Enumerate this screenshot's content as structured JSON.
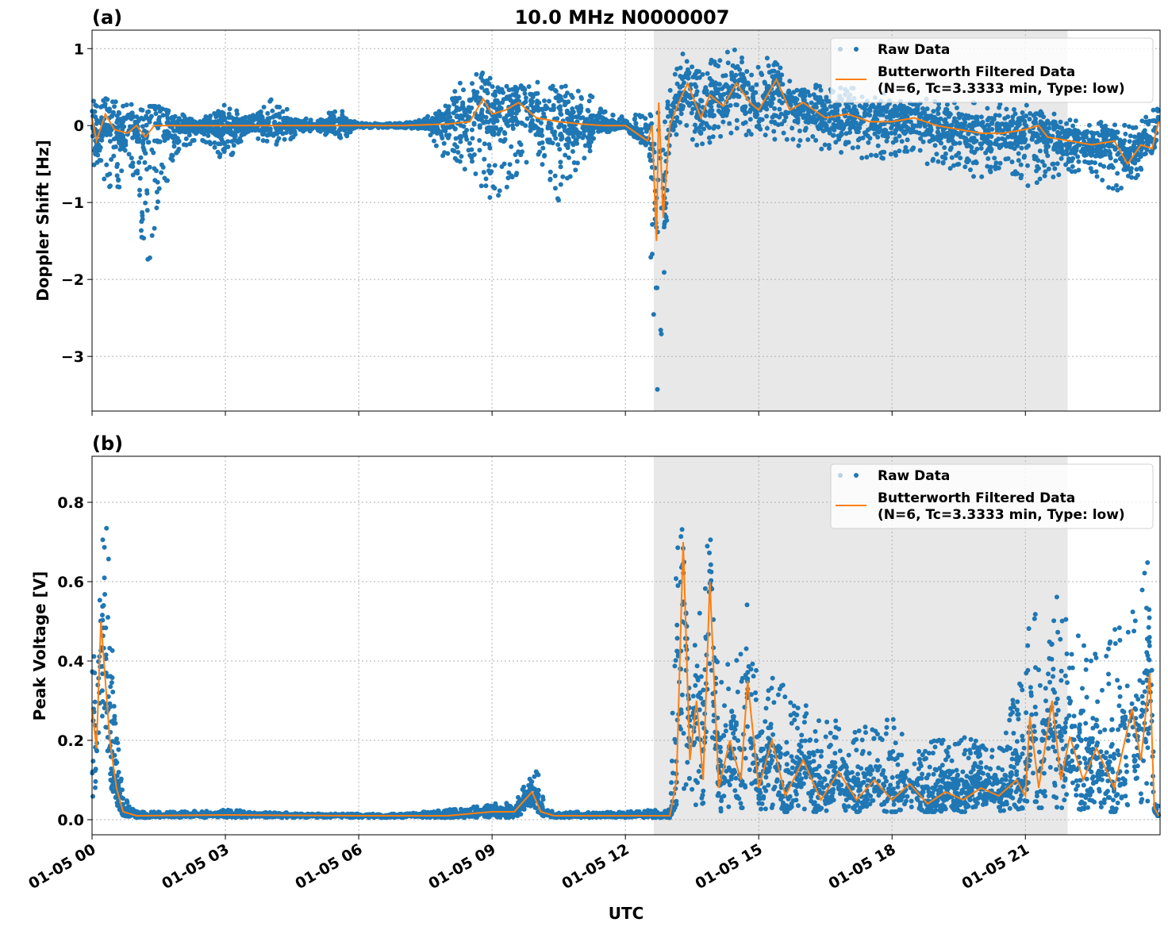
{
  "chart_data": [
    {
      "type": "scatter",
      "panel_label": "(a)",
      "title": "10.0 MHz N0000007",
      "xlabel": "",
      "ylabel": "Doppler Shift [Hz]",
      "xlim_hours": [
        0,
        24.03
      ],
      "ylim": [
        -3.71,
        1.24
      ],
      "yticks": [
        1,
        0,
        -1,
        -2,
        -3
      ],
      "ytick_labels": [
        "1",
        "0",
        "−1",
        "−2",
        "−3"
      ],
      "grid": true,
      "legend_placement": "top-right",
      "shaded_region_hours": [
        12.64,
        21.95
      ],
      "series": [
        {
          "name": "Raw Data",
          "kind": "points",
          "color": "#1f77b4",
          "envelope_hours_min_max": [
            [
              0,
              -0.5,
              0.45
            ],
            [
              0.5,
              -0.9,
              0.35
            ],
            [
              1,
              -0.6,
              0.3
            ],
            [
              1.2,
              -2.1,
              0.25
            ],
            [
              1.5,
              -1.0,
              0.25
            ],
            [
              2,
              -0.3,
              0.15
            ],
            [
              2.5,
              -0.2,
              0.1
            ],
            [
              3,
              -0.5,
              0.3
            ],
            [
              3.5,
              -0.1,
              0.1
            ],
            [
              4,
              -0.3,
              0.35
            ],
            [
              4.5,
              -0.2,
              0.2
            ],
            [
              5,
              -0.05,
              0.05
            ],
            [
              5.5,
              -0.25,
              0.25
            ],
            [
              6,
              -0.03,
              0.03
            ],
            [
              7,
              -0.03,
              0.03
            ],
            [
              7.5,
              -0.05,
              0.1
            ],
            [
              8,
              -0.5,
              0.35
            ],
            [
              8.5,
              -0.6,
              0.8
            ],
            [
              9,
              -1.0,
              0.6
            ],
            [
              9.5,
              -0.7,
              0.55
            ],
            [
              10,
              -0.4,
              0.6
            ],
            [
              10.5,
              -1.0,
              0.55
            ],
            [
              11,
              -0.5,
              0.6
            ],
            [
              11.5,
              -0.1,
              0.2
            ],
            [
              12,
              -0.05,
              0.1
            ],
            [
              12.5,
              -0.3,
              0.2
            ],
            [
              12.6,
              -2.3,
              0.1
            ],
            [
              12.7,
              -3.5,
              0.2
            ],
            [
              12.8,
              -3.3,
              0.1
            ],
            [
              13,
              -0.3,
              0.5
            ],
            [
              13.3,
              0.0,
              0.95
            ],
            [
              13.6,
              -0.3,
              0.8
            ],
            [
              14,
              -0.2,
              0.9
            ],
            [
              14.5,
              -0.1,
              1.0
            ],
            [
              15,
              -0.2,
              0.85
            ],
            [
              15.3,
              -0.2,
              0.95
            ],
            [
              15.5,
              -0.3,
              0.75
            ],
            [
              16,
              -0.3,
              0.6
            ],
            [
              16.5,
              -0.4,
              0.55
            ],
            [
              17,
              -0.4,
              0.5
            ],
            [
              17.5,
              -0.5,
              0.45
            ],
            [
              18,
              -0.4,
              0.4
            ],
            [
              18.5,
              -0.5,
              0.35
            ],
            [
              19,
              -0.5,
              0.35
            ],
            [
              19.5,
              -0.6,
              0.3
            ],
            [
              20,
              -0.7,
              0.3
            ],
            [
              20.5,
              -0.6,
              0.3
            ],
            [
              21,
              -0.8,
              0.3
            ],
            [
              21.5,
              -0.7,
              0.2
            ],
            [
              22,
              -0.6,
              0.1
            ],
            [
              22.5,
              -0.6,
              0.05
            ],
            [
              23,
              -0.9,
              0.05
            ],
            [
              23.5,
              -0.7,
              0.0
            ],
            [
              24,
              -0.2,
              0.3
            ]
          ]
        },
        {
          "name": "Butterworth Filtered Data\n(N=6, Tc=3.3333 min, Type: low)",
          "kind": "line",
          "color": "#ff7f0e",
          "points_hours_value": [
            [
              0,
              0.1
            ],
            [
              0.1,
              -0.2
            ],
            [
              0.3,
              0.15
            ],
            [
              0.5,
              -0.05
            ],
            [
              0.8,
              -0.1
            ],
            [
              1,
              0
            ],
            [
              1.2,
              -0.15
            ],
            [
              1.4,
              0
            ],
            [
              2,
              0
            ],
            [
              3,
              0
            ],
            [
              4,
              0
            ],
            [
              5,
              0
            ],
            [
              6,
              0
            ],
            [
              7,
              0
            ],
            [
              8,
              0.02
            ],
            [
              8.5,
              0.05
            ],
            [
              8.8,
              0.35
            ],
            [
              9,
              0.15
            ],
            [
              9.3,
              0.2
            ],
            [
              9.6,
              0.3
            ],
            [
              10,
              0.1
            ],
            [
              10.5,
              0.05
            ],
            [
              11,
              0.02
            ],
            [
              11.5,
              0
            ],
            [
              12,
              0
            ],
            [
              12.5,
              -0.2
            ],
            [
              12.6,
              0
            ],
            [
              12.7,
              -1.5
            ],
            [
              12.75,
              0.3
            ],
            [
              12.85,
              -1.2
            ],
            [
              13,
              0
            ],
            [
              13.2,
              0.3
            ],
            [
              13.4,
              0.55
            ],
            [
              13.7,
              0.1
            ],
            [
              13.9,
              0.4
            ],
            [
              14.2,
              0.25
            ],
            [
              14.5,
              0.55
            ],
            [
              14.8,
              0.3
            ],
            [
              15,
              0.2
            ],
            [
              15.4,
              0.6
            ],
            [
              15.7,
              0.2
            ],
            [
              16,
              0.3
            ],
            [
              16.5,
              0.1
            ],
            [
              17,
              0.15
            ],
            [
              17.5,
              0.05
            ],
            [
              18,
              0.05
            ],
            [
              18.5,
              0.1
            ],
            [
              19,
              0
            ],
            [
              19.5,
              -0.05
            ],
            [
              20,
              -0.1
            ],
            [
              20.5,
              -0.1
            ],
            [
              21,
              -0.05
            ],
            [
              21.3,
              0
            ],
            [
              21.5,
              -0.15
            ],
            [
              22,
              -0.2
            ],
            [
              22.5,
              -0.25
            ],
            [
              23,
              -0.2
            ],
            [
              23.3,
              -0.5
            ],
            [
              23.6,
              -0.25
            ],
            [
              23.85,
              -0.3
            ],
            [
              24,
              0.05
            ]
          ]
        }
      ]
    },
    {
      "type": "scatter",
      "panel_label": "(b)",
      "title": "",
      "xlabel": "UTC",
      "ylabel": "Peak Voltage [V]",
      "xlim_hours": [
        0,
        24.03
      ],
      "ylim": [
        -0.038,
        0.916
      ],
      "yticks": [
        0.0,
        0.2,
        0.4,
        0.6,
        0.8
      ],
      "ytick_labels": [
        "0.0",
        "0.2",
        "0.4",
        "0.6",
        "0.8"
      ],
      "xticks_hours": [
        0,
        3,
        6,
        9,
        12,
        15,
        18,
        21
      ],
      "xtick_labels": [
        "01-05 00",
        "01-05 03",
        "01-05 06",
        "01-05 09",
        "01-05 12",
        "01-05 15",
        "01-05 18",
        "01-05 21"
      ],
      "grid": true,
      "legend_placement": "top-right",
      "shaded_region_hours": [
        12.64,
        21.95
      ],
      "series": [
        {
          "name": "Raw Data",
          "kind": "points",
          "color": "#1f77b4",
          "envelope_hours_min_max": [
            [
              0,
              0.05,
              0.6
            ],
            [
              0.15,
              0.1,
              0.5
            ],
            [
              0.25,
              0.15,
              0.82
            ],
            [
              0.35,
              0.1,
              0.75
            ],
            [
              0.5,
              0.05,
              0.3
            ],
            [
              0.7,
              0.01,
              0.06
            ],
            [
              1,
              0.005,
              0.02
            ],
            [
              2,
              0.005,
              0.02
            ],
            [
              3,
              0.005,
              0.025
            ],
            [
              4,
              0.005,
              0.02
            ],
            [
              5,
              0.005,
              0.015
            ],
            [
              6,
              0.005,
              0.015
            ],
            [
              7,
              0.005,
              0.015
            ],
            [
              8,
              0.005,
              0.025
            ],
            [
              8.5,
              0.005,
              0.03
            ],
            [
              9,
              0.005,
              0.045
            ],
            [
              9.5,
              0.005,
              0.04
            ],
            [
              9.8,
              0.02,
              0.1
            ],
            [
              10,
              0.02,
              0.135
            ],
            [
              10.2,
              0.005,
              0.03
            ],
            [
              10.5,
              0.005,
              0.02
            ],
            [
              12,
              0.005,
              0.02
            ],
            [
              13,
              0.005,
              0.03
            ],
            [
              13.2,
              0.05,
              0.87
            ],
            [
              13.4,
              0.05,
              0.5
            ],
            [
              13.6,
              0.03,
              0.45
            ],
            [
              13.85,
              0.05,
              0.81
            ],
            [
              14.1,
              0.02,
              0.4
            ],
            [
              14.4,
              0.03,
              0.45
            ],
            [
              14.65,
              0.03,
              0.62
            ],
            [
              15,
              0.02,
              0.37
            ],
            [
              15.5,
              0.02,
              0.36
            ],
            [
              16,
              0.02,
              0.3
            ],
            [
              16.5,
              0.02,
              0.27
            ],
            [
              17,
              0.02,
              0.23
            ],
            [
              17.5,
              0.02,
              0.24
            ],
            [
              18,
              0.02,
              0.26
            ],
            [
              18.5,
              0.02,
              0.2
            ],
            [
              19,
              0.02,
              0.2
            ],
            [
              19.5,
              0.02,
              0.22
            ],
            [
              20,
              0.02,
              0.2
            ],
            [
              20.5,
              0.02,
              0.18
            ],
            [
              21,
              0.03,
              0.5
            ],
            [
              21.2,
              0.03,
              0.53
            ],
            [
              21.5,
              0.03,
              0.52
            ],
            [
              21.8,
              0.03,
              0.6
            ],
            [
              22,
              0.03,
              0.5
            ],
            [
              22.5,
              0.02,
              0.42
            ],
            [
              23,
              0.02,
              0.48
            ],
            [
              23.5,
              0.03,
              0.55
            ],
            [
              23.8,
              0.05,
              0.76
            ],
            [
              23.9,
              0.01,
              0.1
            ],
            [
              24,
              0.01,
              0.03
            ]
          ]
        },
        {
          "name": "Butterworth Filtered Data\n(N=6, Tc=3.3333 min, Type: low)",
          "kind": "line",
          "color": "#ff7f0e",
          "points_hours_value": [
            [
              0,
              0.28
            ],
            [
              0.1,
              0.18
            ],
            [
              0.2,
              0.5
            ],
            [
              0.3,
              0.35
            ],
            [
              0.4,
              0.2
            ],
            [
              0.55,
              0.08
            ],
            [
              0.7,
              0.02
            ],
            [
              1,
              0.01
            ],
            [
              3,
              0.012
            ],
            [
              6,
              0.01
            ],
            [
              8,
              0.01
            ],
            [
              8.5,
              0.015
            ],
            [
              9,
              0.02
            ],
            [
              9.5,
              0.02
            ],
            [
              9.9,
              0.07
            ],
            [
              10.1,
              0.02
            ],
            [
              10.4,
              0.01
            ],
            [
              12,
              0.01
            ],
            [
              13,
              0.01
            ],
            [
              13.15,
              0.1
            ],
            [
              13.3,
              0.7
            ],
            [
              13.45,
              0.15
            ],
            [
              13.6,
              0.3
            ],
            [
              13.75,
              0.1
            ],
            [
              13.9,
              0.6
            ],
            [
              14.1,
              0.08
            ],
            [
              14.35,
              0.2
            ],
            [
              14.6,
              0.1
            ],
            [
              14.75,
              0.35
            ],
            [
              15,
              0.08
            ],
            [
              15.3,
              0.2
            ],
            [
              15.6,
              0.06
            ],
            [
              16,
              0.15
            ],
            [
              16.4,
              0.05
            ],
            [
              16.8,
              0.12
            ],
            [
              17.2,
              0.05
            ],
            [
              17.6,
              0.1
            ],
            [
              18,
              0.05
            ],
            [
              18.4,
              0.09
            ],
            [
              18.8,
              0.04
            ],
            [
              19.2,
              0.07
            ],
            [
              19.6,
              0.05
            ],
            [
              20,
              0.08
            ],
            [
              20.4,
              0.06
            ],
            [
              20.8,
              0.1
            ],
            [
              21,
              0.06
            ],
            [
              21.1,
              0.26
            ],
            [
              21.3,
              0.08
            ],
            [
              21.6,
              0.3
            ],
            [
              21.8,
              0.1
            ],
            [
              22,
              0.21
            ],
            [
              22.3,
              0.1
            ],
            [
              22.6,
              0.18
            ],
            [
              23,
              0.08
            ],
            [
              23.4,
              0.28
            ],
            [
              23.6,
              0.15
            ],
            [
              23.8,
              0.37
            ],
            [
              23.9,
              0.03
            ],
            [
              24,
              0.01
            ]
          ]
        }
      ]
    }
  ]
}
